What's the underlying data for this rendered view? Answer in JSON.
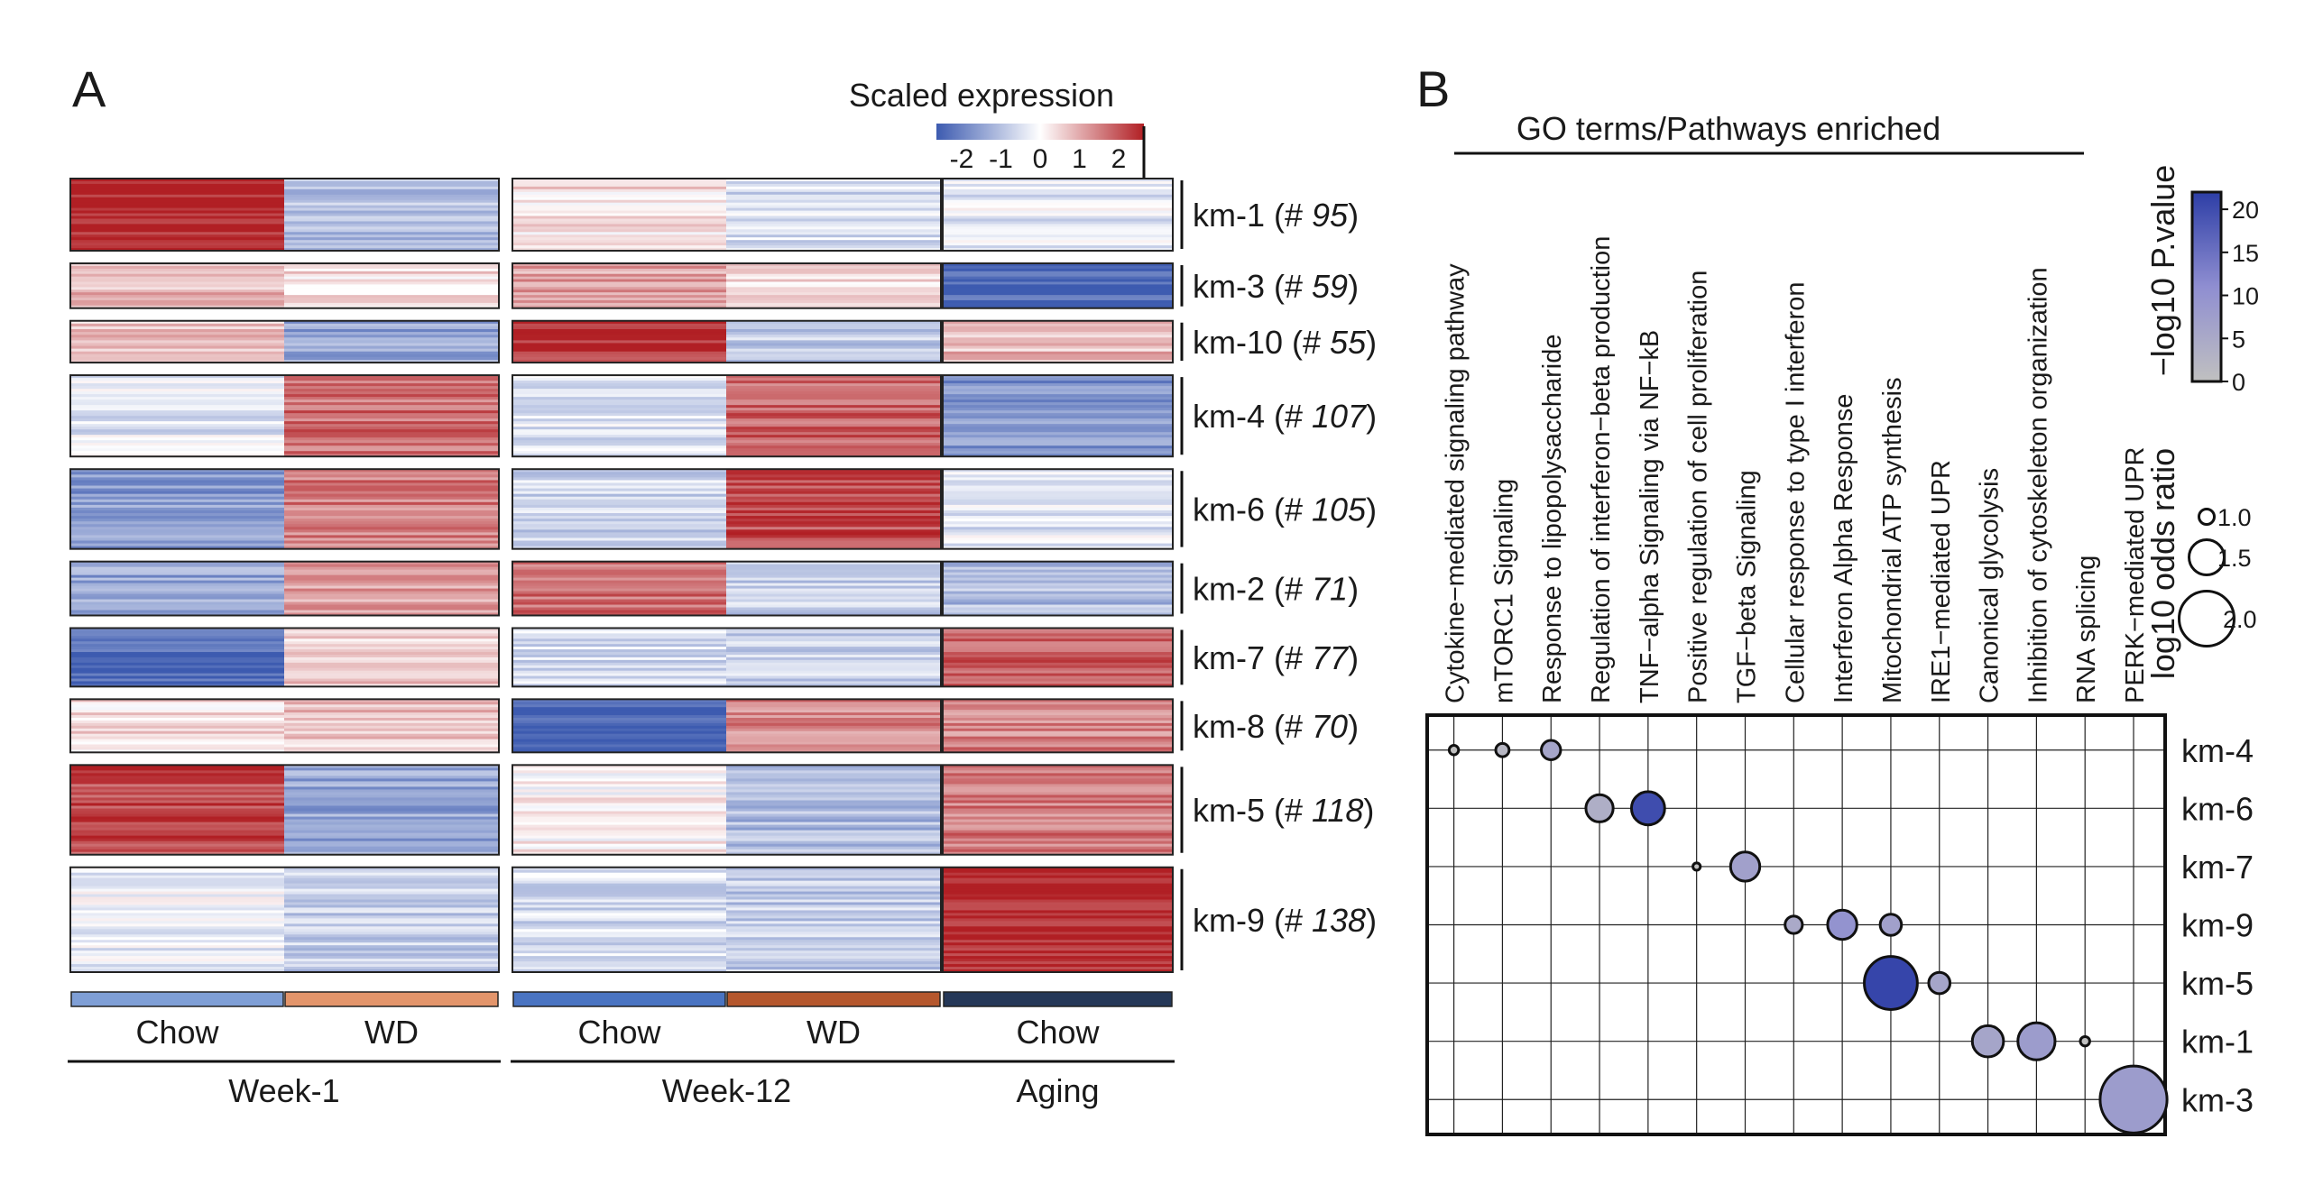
{
  "chart_data": [
    {
      "type": "heatmap",
      "panel_label": "A",
      "legend": {
        "title": "Scaled expression",
        "ticks": [
          "-2",
          "-1",
          "0",
          "1",
          "2"
        ],
        "range": [
          -2,
          2
        ],
        "colors": [
          "#3d5bb0",
          "#ffffff",
          "#b11f24"
        ]
      },
      "columns": [
        {
          "group": "Week-1",
          "condition": "Chow",
          "bar_color": "#7f9fd6"
        },
        {
          "group": "Week-1",
          "condition": "WD",
          "bar_color": "#e3956b"
        },
        {
          "group": "Week-12",
          "condition": "Chow",
          "bar_color": "#4a74c2"
        },
        {
          "group": "Week-12",
          "condition": "WD",
          "bar_color": "#b5572d"
        },
        {
          "group": "Aging",
          "condition": "Chow",
          "bar_color": "#253858"
        }
      ],
      "groups": [
        "Week-1",
        "Week-12",
        "Aging"
      ],
      "clusters": [
        {
          "name": "km-1",
          "count": "95",
          "values": [
            1.9,
            -0.8,
            0.3,
            -0.4,
            -0.25
          ]
        },
        {
          "name": "km-3",
          "count": "59",
          "values": [
            0.6,
            0.35,
            0.8,
            0.4,
            -1.9
          ]
        },
        {
          "name": "km-10",
          "count": "55",
          "values": [
            0.45,
            -1.1,
            1.8,
            -0.6,
            0.6
          ]
        },
        {
          "name": "km-4",
          "count": "107",
          "values": [
            -0.3,
            1.3,
            -0.3,
            1.4,
            -1.3
          ]
        },
        {
          "name": "km-6",
          "count": "105",
          "values": [
            -1.2,
            1.2,
            -0.5,
            1.6,
            -0.3
          ]
        },
        {
          "name": "km-2",
          "count": "71",
          "values": [
            -1.1,
            0.8,
            1.3,
            -0.6,
            -0.8
          ]
        },
        {
          "name": "km-7",
          "count": "77",
          "values": [
            -1.8,
            0.5,
            -0.4,
            -0.5,
            1.5
          ]
        },
        {
          "name": "km-8",
          "count": "70",
          "values": [
            0.3,
            0.5,
            -2.0,
            1.1,
            1.1
          ]
        },
        {
          "name": "km-5",
          "count": "118",
          "values": [
            1.6,
            -1.1,
            0.1,
            -0.8,
            1.2
          ]
        },
        {
          "name": "km-9",
          "count": "138",
          "values": [
            -0.2,
            -0.6,
            -0.4,
            -0.6,
            2.0
          ]
        }
      ]
    },
    {
      "type": "scatter",
      "panel_label": "B",
      "header": "GO terms/Pathways enriched",
      "terms": [
        "Cytokine−mediated signaling pathway",
        "mTORC1 Signaling",
        "Response to lipopolysaccharide",
        "Regulation of interferon−beta production",
        "TNF−alpha Signaling via NF−kB",
        "Positive regulation of cell proliferation",
        "TGF−beta Signaling",
        "Cellular response to type I interferon",
        "Interferon Alpha Response",
        "Mitochondrial ATP synthesis",
        "IRE1−mediated UPR",
        "Canonical glycolysis",
        "Inhibition of cytoskeleton organization",
        "RNA splicing",
        "PERK−mediated UPR"
      ],
      "clusters": [
        "km-4",
        "km-6",
        "km-7",
        "km-9",
        "km-5",
        "km-1",
        "km-3"
      ],
      "points": [
        {
          "term": 0,
          "cluster": 0,
          "odds": 0.85,
          "pval": 0
        },
        {
          "term": 1,
          "cluster": 0,
          "odds": 0.95,
          "pval": 2
        },
        {
          "term": 2,
          "cluster": 0,
          "odds": 1.1,
          "pval": 6
        },
        {
          "term": 3,
          "cluster": 1,
          "odds": 1.3,
          "pval": 4
        },
        {
          "term": 4,
          "cluster": 1,
          "odds": 1.45,
          "pval": 20
        },
        {
          "term": 5,
          "cluster": 2,
          "odds": 0.8,
          "pval": 0
        },
        {
          "term": 6,
          "cluster": 2,
          "odds": 1.35,
          "pval": 7
        },
        {
          "term": 7,
          "cluster": 3,
          "odds": 1.05,
          "pval": 5
        },
        {
          "term": 8,
          "cluster": 3,
          "odds": 1.35,
          "pval": 10
        },
        {
          "term": 9,
          "cluster": 3,
          "odds": 1.15,
          "pval": 7
        },
        {
          "term": 9,
          "cluster": 4,
          "odds": 1.95,
          "pval": 21
        },
        {
          "term": 10,
          "cluster": 4,
          "odds": 1.15,
          "pval": 6
        },
        {
          "term": 11,
          "cluster": 5,
          "odds": 1.4,
          "pval": 6
        },
        {
          "term": 12,
          "cluster": 5,
          "odds": 1.55,
          "pval": 8
        },
        {
          "term": 13,
          "cluster": 5,
          "odds": 0.85,
          "pval": 0
        },
        {
          "term": 14,
          "cluster": 6,
          "odds": 2.3,
          "pval": 8
        }
      ],
      "color_legend": {
        "title": "−log10 P.value",
        "ticks": [
          "0",
          "5",
          "10",
          "15",
          "20"
        ],
        "range": [
          0,
          22
        ],
        "colors": [
          "#c0c0c0",
          "#8f8ed1",
          "#2d3ea6"
        ]
      },
      "size_legend": {
        "title": "log10 odds ratio",
        "values": [
          1.0,
          1.5,
          2.0
        ],
        "labels": [
          "1.0",
          "1.5",
          "2.0"
        ]
      }
    }
  ]
}
